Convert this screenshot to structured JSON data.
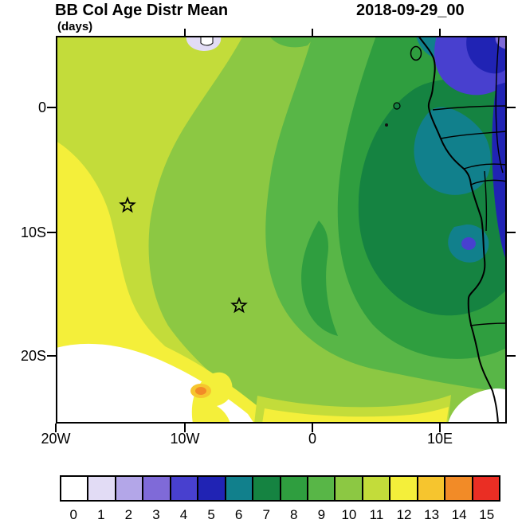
{
  "chart_data": {
    "type": "heatmap",
    "title": "BB Col Age Distr Mean",
    "units": "(days)",
    "timestamp": "2018-09-29_00",
    "x_ticks": [
      "20W",
      "10W",
      "0",
      "10E"
    ],
    "y_ticks": [
      "0",
      "10S",
      "20S"
    ],
    "lon_range": [
      "20W",
      "15E"
    ],
    "lat_range": [
      "5N",
      "25S"
    ],
    "grid": false,
    "legend_position": "bottom",
    "colorbar": {
      "labels": [
        "0",
        "1",
        "2",
        "3",
        "4",
        "5",
        "6",
        "7",
        "8",
        "9",
        "10",
        "11",
        "12",
        "13",
        "14",
        "15"
      ],
      "colors": [
        "#ffffff",
        "#e2dcf5",
        "#b3a6e8",
        "#7f6ad8",
        "#4840cf",
        "#2023b4",
        "#11808c",
        "#158341",
        "#2f9e3f",
        "#58b647",
        "#8cc843",
        "#c3dc3a",
        "#f4ef3a",
        "#f6c52e",
        "#f28b27",
        "#ea2e24"
      ]
    },
    "markers": [
      {
        "symbol": "star",
        "lon": "14W",
        "lat": "8S"
      },
      {
        "symbol": "star",
        "lon": "6W",
        "lat": "16S"
      }
    ],
    "field_summary": [
      {
        "area": "far west / southwest ocean (west of ~12W)",
        "value_days": "11-12"
      },
      {
        "area": "central South Atlantic",
        "value_days": "9-10"
      },
      {
        "area": "eastern ocean approaching African coast",
        "value_days": "7-8"
      },
      {
        "area": "Gulf of Guinea coast, Gabon-Congo",
        "value_days": "6-7"
      },
      {
        "area": "inland northeast (top-right corner of map)",
        "value_days": "2-5"
      },
      {
        "area": "bottom-left and far south of ~20S",
        "value_days": "0-1"
      },
      {
        "area": "small pocket near 7W, 20S",
        "value_days": "13-14"
      }
    ]
  }
}
